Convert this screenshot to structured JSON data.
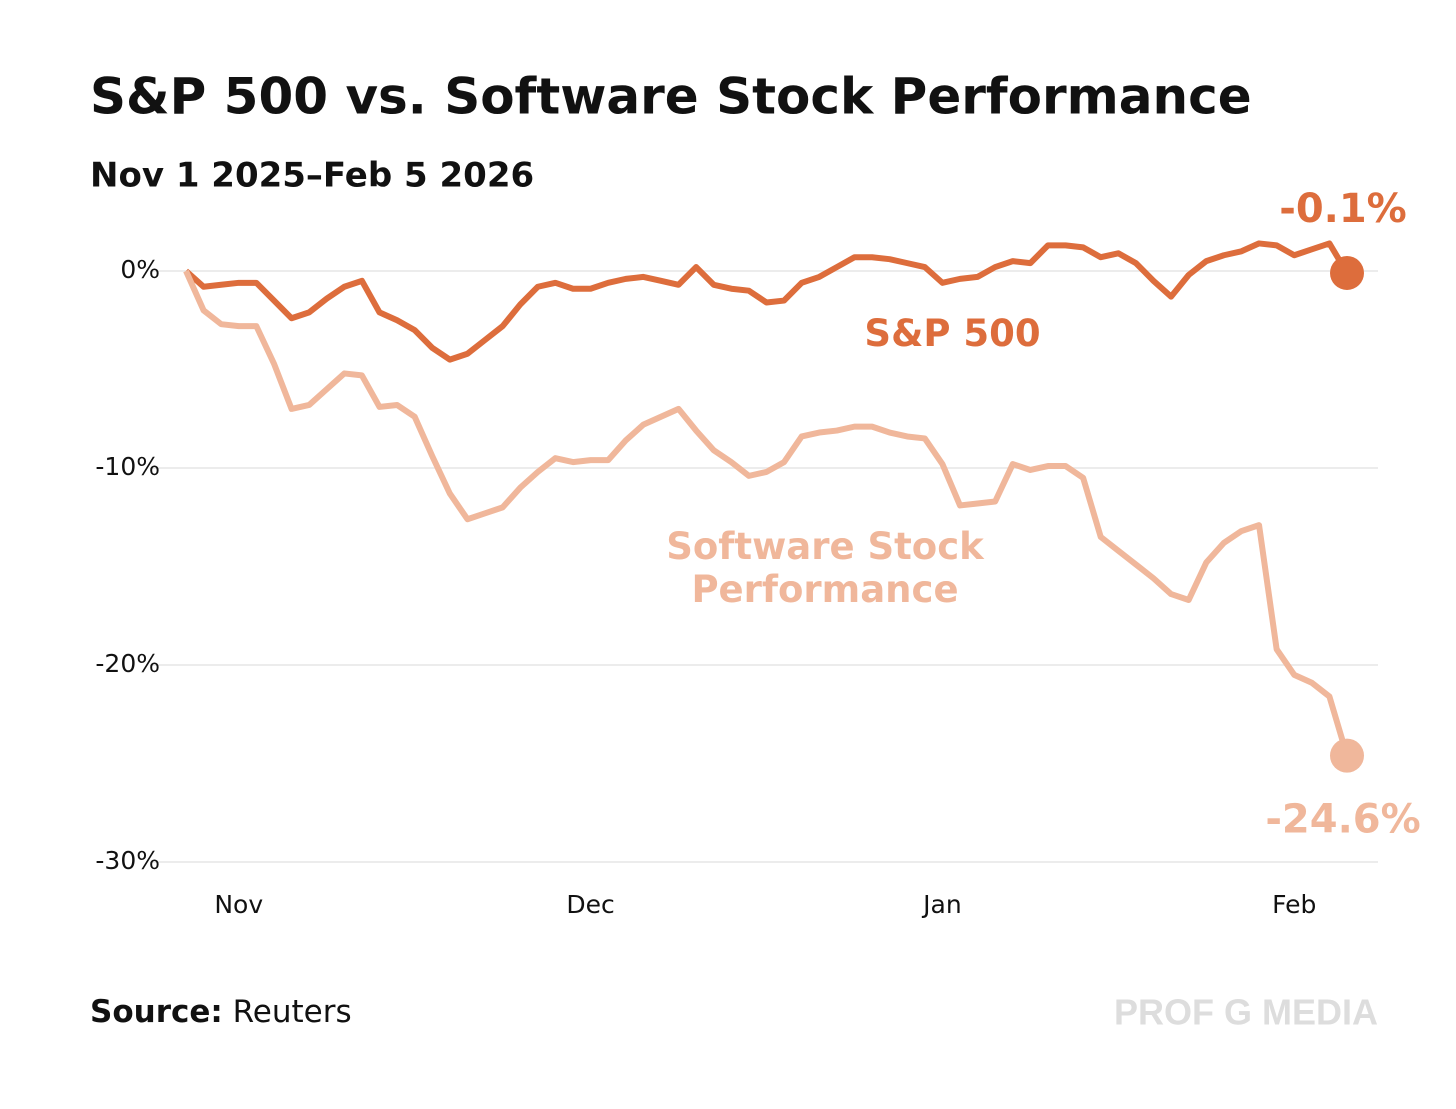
{
  "chart_data": {
    "type": "line",
    "title": "S&P 500 vs. Software Stock Performance",
    "subtitle": "Nov 1 2025–Feb 5 2026",
    "source_label": "Source:",
    "source": "Reuters",
    "watermark": "PROF G MEDIA",
    "categories": [
      null,
      null,
      null,
      "Nov",
      null,
      null,
      null,
      null,
      null,
      null,
      null,
      null,
      null,
      null,
      null,
      null,
      null,
      null,
      null,
      null,
      null,
      null,
      null,
      "Dec",
      null,
      null,
      null,
      null,
      null,
      null,
      null,
      null,
      null,
      null,
      null,
      null,
      null,
      null,
      null,
      null,
      null,
      null,
      null,
      "Jan",
      null,
      null,
      null,
      null,
      null,
      null,
      null,
      null,
      null,
      null,
      null,
      null,
      null,
      null,
      null,
      null,
      null,
      null,
      null,
      "Feb",
      null,
      null,
      null
    ],
    "ylim": [
      -30,
      3
    ],
    "yticks": [
      {
        "value": 0,
        "label": "0%"
      },
      {
        "value": -10,
        "label": "-10%"
      },
      {
        "value": -20,
        "label": "-20%"
      },
      {
        "value": -30,
        "label": "-30%"
      }
    ],
    "grid": true,
    "series": [
      {
        "name": "S&P 500",
        "color": "#dd6d3c",
        "values": [
          0,
          -0.8,
          -0.7,
          -0.6,
          -0.6,
          -1.5,
          -2.4,
          -2.1,
          -1.4,
          -0.8,
          -0.5,
          -2.1,
          -2.5,
          -3.0,
          -3.9,
          -4.5,
          -4.2,
          -3.5,
          -2.8,
          -1.7,
          -0.8,
          -0.6,
          -0.9,
          -0.9,
          -0.6,
          -0.4,
          -0.3,
          -0.5,
          -0.7,
          0.2,
          -0.7,
          -0.9,
          -1.0,
          -1.6,
          -1.5,
          -0.6,
          -0.3,
          0.2,
          0.7,
          0.7,
          0.6,
          0.4,
          0.2,
          -0.6,
          -0.4,
          -0.3,
          0.2,
          0.5,
          0.4,
          1.3,
          1.3,
          1.2,
          0.7,
          0.9,
          0.4,
          -0.5,
          -1.3,
          -0.2,
          0.5,
          0.8,
          1.0,
          1.4,
          1.3,
          0.8,
          1.1,
          1.4,
          -0.1
        ],
        "value_labels": [
          null,
          null,
          null,
          null,
          null,
          null,
          null,
          null,
          null,
          null,
          null,
          null,
          null,
          null,
          null,
          null,
          null,
          null,
          null,
          null,
          null,
          null,
          null,
          null,
          null,
          null,
          null,
          null,
          null,
          null,
          null,
          null,
          null,
          null,
          null,
          null,
          null,
          null,
          null,
          null,
          null,
          null,
          null,
          null,
          null,
          null,
          null,
          null,
          null,
          null,
          null,
          null,
          null,
          null,
          null,
          null,
          null,
          null,
          null,
          null,
          null,
          null,
          null,
          null,
          null,
          null,
          "-0.1%"
        ]
      },
      {
        "name": "Software Stock Performance",
        "color": "#f0b79b",
        "values": [
          0,
          -2.0,
          -2.7,
          -2.8,
          -2.8,
          -4.7,
          -7.0,
          -6.8,
          -6.0,
          -5.2,
          -5.3,
          -6.9,
          -6.8,
          -7.4,
          -9.4,
          -11.3,
          -12.6,
          -12.3,
          -12.0,
          -11.0,
          -10.2,
          -9.5,
          -9.7,
          -9.6,
          -9.6,
          -8.6,
          -7.8,
          -7.4,
          -7.0,
          -8.1,
          -9.1,
          -9.7,
          -10.4,
          -10.2,
          -9.7,
          -8.4,
          -8.2,
          -8.1,
          -7.9,
          -7.9,
          -8.2,
          -8.4,
          -8.5,
          -9.8,
          -11.9,
          -11.8,
          -11.7,
          -9.8,
          -10.1,
          -9.9,
          -9.9,
          -10.5,
          -13.5,
          -14.2,
          -14.9,
          -15.6,
          -16.4,
          -16.7,
          -14.8,
          -13.8,
          -13.2,
          -12.9,
          -19.2,
          -20.5,
          -20.9,
          -21.6,
          -24.6
        ],
        "value_labels": [
          null,
          null,
          null,
          null,
          null,
          null,
          null,
          null,
          null,
          null,
          null,
          null,
          null,
          null,
          null,
          null,
          null,
          null,
          null,
          null,
          null,
          null,
          null,
          null,
          null,
          null,
          null,
          null,
          null,
          null,
          null,
          null,
          null,
          null,
          null,
          null,
          null,
          null,
          null,
          null,
          null,
          null,
          null,
          null,
          null,
          null,
          null,
          null,
          null,
          null,
          null,
          null,
          null,
          null,
          null,
          null,
          null,
          null,
          null,
          null,
          null,
          null,
          null,
          null,
          null,
          null,
          "-24.6%"
        ]
      }
    ]
  }
}
